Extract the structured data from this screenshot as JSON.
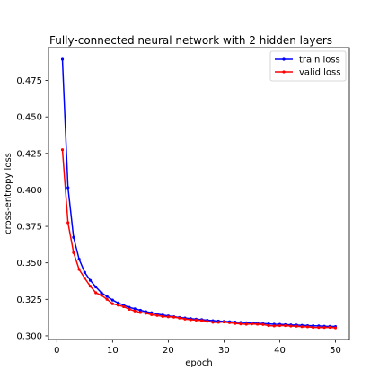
{
  "chart_data": {
    "type": "line",
    "title": "Fully-connected neural network with 2 hidden layers",
    "xlabel": "epoch",
    "ylabel": "cross-entropy loss",
    "xlim": [
      -1.5,
      52.5
    ],
    "ylim": [
      0.2975,
      0.4975
    ],
    "xticks": [
      0,
      10,
      20,
      30,
      40,
      50
    ],
    "yticks": [
      0.3,
      0.325,
      0.35,
      0.375,
      0.4,
      0.425,
      0.45,
      0.475
    ],
    "ytick_labels": [
      "0.300",
      "0.325",
      "0.350",
      "0.375",
      "0.400",
      "0.425",
      "0.450",
      "0.475"
    ],
    "grid": false,
    "legend_position": "top-right",
    "x": [
      1,
      2,
      3,
      4,
      5,
      6,
      7,
      8,
      9,
      10,
      11,
      12,
      13,
      14,
      15,
      16,
      17,
      18,
      19,
      20,
      21,
      22,
      23,
      24,
      25,
      26,
      27,
      28,
      29,
      30,
      31,
      32,
      33,
      34,
      35,
      36,
      37,
      38,
      39,
      40,
      41,
      42,
      43,
      44,
      45,
      46,
      47,
      48,
      49,
      50
    ],
    "series": [
      {
        "name": "train loss",
        "color": "#0000ff",
        "values": [
          0.4895,
          0.4015,
          0.3675,
          0.3525,
          0.3435,
          0.338,
          0.3335,
          0.3295,
          0.327,
          0.3245,
          0.3225,
          0.321,
          0.3195,
          0.3185,
          0.3175,
          0.3165,
          0.3158,
          0.315,
          0.3143,
          0.3137,
          0.3131,
          0.3126,
          0.3122,
          0.3118,
          0.3114,
          0.3111,
          0.3107,
          0.3104,
          0.3101,
          0.3099,
          0.3097,
          0.3094,
          0.3092,
          0.309,
          0.3088,
          0.3086,
          0.3084,
          0.3082,
          0.308,
          0.3079,
          0.3077,
          0.3075,
          0.3074,
          0.3072,
          0.307,
          0.3069,
          0.3068,
          0.3066,
          0.3065,
          0.3064
        ]
      },
      {
        "name": "valid loss",
        "color": "#ff0000",
        "values": [
          0.4275,
          0.3775,
          0.357,
          0.3455,
          0.3395,
          0.334,
          0.3295,
          0.3278,
          0.325,
          0.322,
          0.321,
          0.32,
          0.3182,
          0.317,
          0.316,
          0.3155,
          0.3145,
          0.314,
          0.3133,
          0.313,
          0.3128,
          0.3122,
          0.3115,
          0.311,
          0.3108,
          0.3105,
          0.31,
          0.3093,
          0.3093,
          0.3095,
          0.309,
          0.3085,
          0.3082,
          0.308,
          0.3082,
          0.308,
          0.3078,
          0.307,
          0.3068,
          0.307,
          0.307,
          0.3067,
          0.3066,
          0.3063,
          0.3062,
          0.3058,
          0.3057,
          0.3057,
          0.3058,
          0.3055
        ]
      }
    ]
  }
}
